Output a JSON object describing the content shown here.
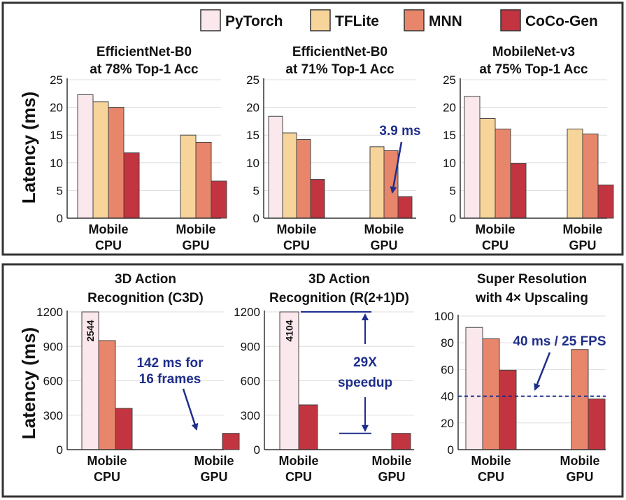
{
  "colors": {
    "PyTorch": "#fbe8ec",
    "TFLite": "#f6d49a",
    "MNN": "#e8866b",
    "CoCo-Gen": "#c2343f",
    "annotation": "#1f2e8a"
  },
  "legend": [
    "PyTorch",
    "TFLite",
    "MNN",
    "CoCo-Gen"
  ],
  "ylabel": "Latency (ms)",
  "chart_data": [
    {
      "type": "bar",
      "title": [
        "EfficientNet-B0",
        "at 78% Top-1 Acc"
      ],
      "categories": [
        [
          "Mobile",
          "CPU"
        ],
        [
          "Mobile",
          "GPU"
        ]
      ],
      "series_order": [
        "PyTorch",
        "TFLite",
        "MNN",
        "CoCo-Gen"
      ],
      "values": [
        [
          22.3,
          21.0,
          20.0,
          11.8
        ],
        [
          null,
          15.0,
          13.7,
          6.7
        ]
      ],
      "ylim": [
        0,
        25
      ],
      "yticks": [
        0,
        5,
        10,
        15,
        20,
        25
      ],
      "annotations": []
    },
    {
      "type": "bar",
      "title": [
        "EfficientNet-B0",
        "at 71% Top-1 Acc"
      ],
      "categories": [
        [
          "Mobile",
          "CPU"
        ],
        [
          "Mobile",
          "GPU"
        ]
      ],
      "series_order": [
        "PyTorch",
        "TFLite",
        "MNN",
        "CoCo-Gen"
      ],
      "values": [
        [
          18.4,
          15.4,
          14.2,
          7.0
        ],
        [
          null,
          12.9,
          12.2,
          3.9
        ]
      ],
      "ylim": [
        0,
        25
      ],
      "yticks": [
        0,
        5,
        10,
        15,
        20,
        25
      ],
      "annotations": [
        {
          "text": [
            "3.9 ms"
          ],
          "points_to": "CoCo-Gen Mobile GPU"
        }
      ]
    },
    {
      "type": "bar",
      "title": [
        "MobileNet-v3",
        "at 75% Top-1 Acc"
      ],
      "categories": [
        [
          "Mobile",
          "CPU"
        ],
        [
          "Mobile",
          "GPU"
        ]
      ],
      "series_order": [
        "PyTorch",
        "TFLite",
        "MNN",
        "CoCo-Gen"
      ],
      "values": [
        [
          22.0,
          18.0,
          16.1,
          9.9
        ],
        [
          null,
          16.1,
          15.2,
          6.0
        ]
      ],
      "ylim": [
        0,
        25
      ],
      "yticks": [
        0,
        5,
        10,
        15,
        20,
        25
      ],
      "annotations": []
    },
    {
      "type": "bar",
      "title": [
        "3D Action",
        "Recognition (C3D)"
      ],
      "categories": [
        [
          "Mobile",
          "CPU"
        ],
        [
          "Mobile",
          "GPU"
        ]
      ],
      "series_order": [
        "PyTorch",
        "MNN",
        "CoCo-Gen"
      ],
      "values": [
        [
          2544,
          950,
          360
        ],
        [
          null,
          null,
          142
        ]
      ],
      "ylim": [
        0,
        1200
      ],
      "yticks": [
        0,
        300,
        600,
        900,
        1200
      ],
      "bar_labels": [
        "2544"
      ],
      "annotations": [
        {
          "text": [
            "142 ms for",
            "16 frames"
          ],
          "points_to": "CoCo-Gen Mobile GPU"
        }
      ]
    },
    {
      "type": "bar",
      "title": [
        "3D Action",
        "Recognition (R(2+1)D)"
      ],
      "categories": [
        [
          "Mobile",
          "CPU"
        ],
        [
          "Mobile",
          "GPU"
        ]
      ],
      "series_order": [
        "PyTorch",
        "CoCo-Gen"
      ],
      "values": [
        [
          4104,
          390
        ],
        [
          null,
          142
        ]
      ],
      "ylim": [
        0,
        1200
      ],
      "yticks": [
        0,
        300,
        600,
        900,
        1200
      ],
      "bar_labels": [
        "4104"
      ],
      "annotations": [
        {
          "text": [
            "29X",
            "speedup"
          ],
          "points_to": "PyTorch CPU vs CoCo-Gen GPU"
        }
      ]
    },
    {
      "type": "bar",
      "title": [
        "Super Resolution",
        "with 4× Upscaling"
      ],
      "categories": [
        [
          "Mobile",
          "CPU"
        ],
        [
          "Mobile",
          "GPU"
        ]
      ],
      "series_order": [
        "PyTorch",
        "MNN",
        "CoCo-Gen"
      ],
      "values": [
        [
          91.5,
          83.0,
          59.5
        ],
        [
          null,
          75.0,
          38.0
        ]
      ],
      "ylim": [
        0,
        100
      ],
      "yticks": [
        0,
        20,
        40,
        60,
        80,
        100
      ],
      "reference_line": 40,
      "annotations": [
        {
          "text": [
            "40 ms / 25 FPS"
          ],
          "points_to": "reference line"
        }
      ]
    }
  ]
}
